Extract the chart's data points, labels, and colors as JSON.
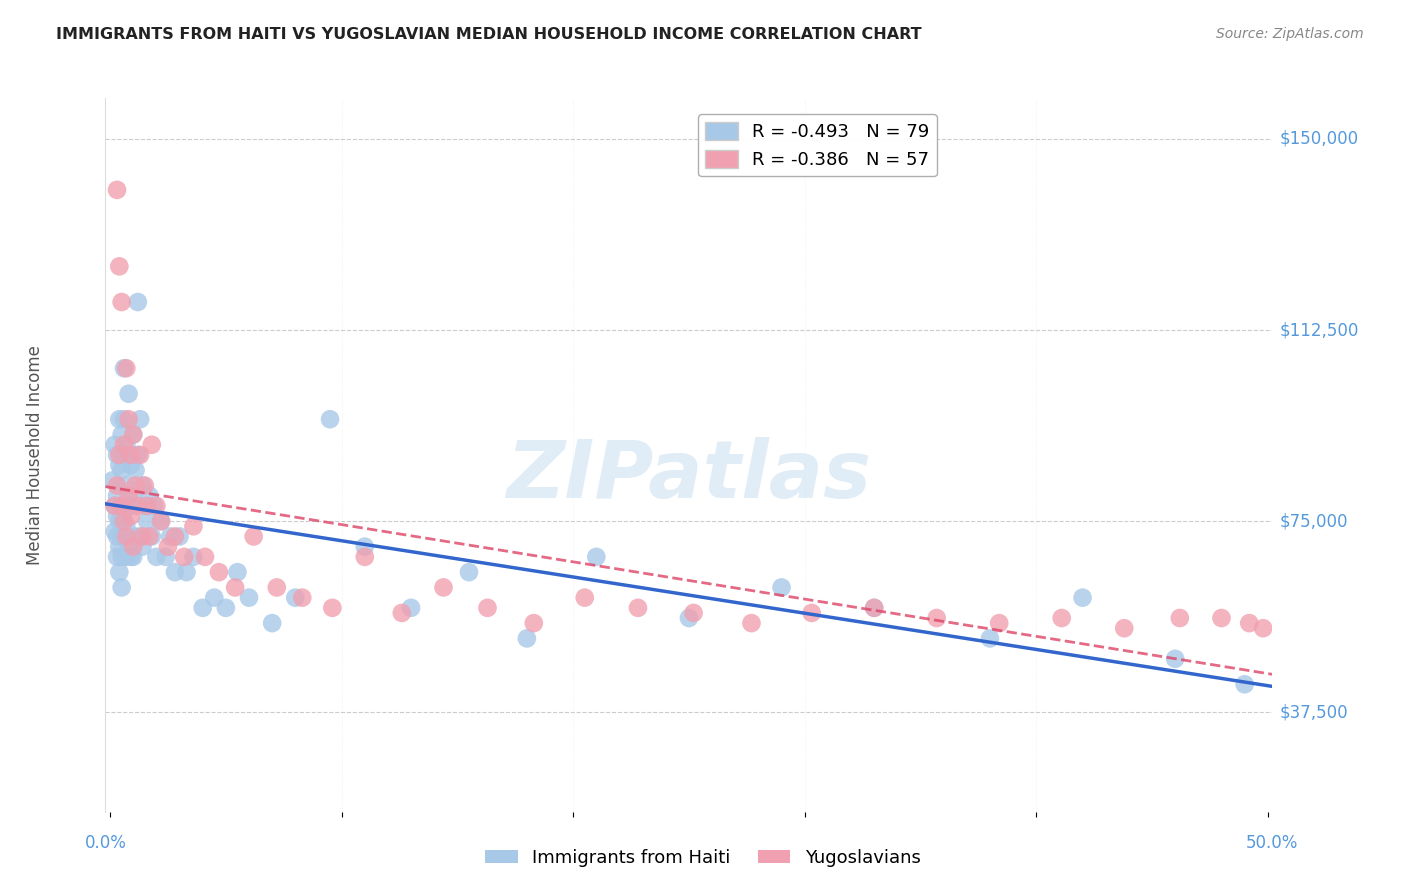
{
  "title": "IMMIGRANTS FROM HAITI VS YUGOSLAVIAN MEDIAN HOUSEHOLD INCOME CORRELATION CHART",
  "source": "Source: ZipAtlas.com",
  "ylabel": "Median Household Income",
  "ytick_labels": [
    "$150,000",
    "$112,500",
    "$75,000",
    "$37,500"
  ],
  "ytick_values": [
    150000,
    112500,
    75000,
    37500
  ],
  "ymin": 18000,
  "ymax": 158000,
  "xmin": -0.002,
  "xmax": 0.502,
  "watermark_text": "ZIPatlas",
  "haiti_color": "#a8c8e8",
  "yugo_color": "#f0a0b0",
  "haiti_line_color": "#3366cc",
  "yugo_line_color": "#dd4466",
  "background_color": "#ffffff",
  "grid_color": "#cccccc",
  "title_color": "#222222",
  "source_color": "#888888",
  "axis_label_color": "#5599dd",
  "right_tick_color": "#5599dd",
  "haiti_scatter_x": [
    0.001,
    0.002,
    0.002,
    0.002,
    0.003,
    0.003,
    0.003,
    0.003,
    0.003,
    0.004,
    0.004,
    0.004,
    0.004,
    0.004,
    0.005,
    0.005,
    0.005,
    0.005,
    0.005,
    0.005,
    0.006,
    0.006,
    0.006,
    0.006,
    0.007,
    0.007,
    0.007,
    0.007,
    0.008,
    0.008,
    0.008,
    0.008,
    0.009,
    0.009,
    0.009,
    0.01,
    0.01,
    0.01,
    0.011,
    0.011,
    0.012,
    0.012,
    0.013,
    0.013,
    0.014,
    0.014,
    0.015,
    0.016,
    0.017,
    0.018,
    0.019,
    0.02,
    0.022,
    0.024,
    0.026,
    0.028,
    0.03,
    0.033,
    0.036,
    0.04,
    0.045,
    0.05,
    0.055,
    0.06,
    0.07,
    0.08,
    0.095,
    0.11,
    0.13,
    0.155,
    0.18,
    0.21,
    0.25,
    0.29,
    0.33,
    0.38,
    0.42,
    0.46,
    0.49
  ],
  "haiti_scatter_y": [
    83000,
    90000,
    78000,
    73000,
    88000,
    80000,
    72000,
    68000,
    76000,
    95000,
    86000,
    75000,
    70000,
    65000,
    92000,
    85000,
    78000,
    72000,
    68000,
    62000,
    105000,
    95000,
    88000,
    75000,
    90000,
    82000,
    74000,
    68000,
    100000,
    88000,
    78000,
    70000,
    86000,
    78000,
    68000,
    92000,
    80000,
    68000,
    85000,
    72000,
    118000,
    88000,
    95000,
    72000,
    82000,
    70000,
    78000,
    75000,
    80000,
    72000,
    78000,
    68000,
    75000,
    68000,
    72000,
    65000,
    72000,
    65000,
    68000,
    58000,
    60000,
    58000,
    65000,
    60000,
    55000,
    60000,
    95000,
    70000,
    58000,
    65000,
    52000,
    68000,
    56000,
    62000,
    58000,
    52000,
    60000,
    48000,
    43000
  ],
  "yugo_scatter_x": [
    0.002,
    0.003,
    0.003,
    0.004,
    0.004,
    0.005,
    0.005,
    0.006,
    0.006,
    0.007,
    0.007,
    0.008,
    0.008,
    0.009,
    0.009,
    0.01,
    0.01,
    0.011,
    0.012,
    0.013,
    0.014,
    0.015,
    0.016,
    0.017,
    0.018,
    0.02,
    0.022,
    0.025,
    0.028,
    0.032,
    0.036,
    0.041,
    0.047,
    0.054,
    0.062,
    0.072,
    0.083,
    0.096,
    0.11,
    0.126,
    0.144,
    0.163,
    0.183,
    0.205,
    0.228,
    0.252,
    0.277,
    0.303,
    0.33,
    0.357,
    0.384,
    0.411,
    0.438,
    0.462,
    0.48,
    0.492,
    0.498
  ],
  "yugo_scatter_y": [
    78000,
    140000,
    82000,
    125000,
    88000,
    78000,
    118000,
    90000,
    75000,
    105000,
    72000,
    95000,
    80000,
    88000,
    76000,
    92000,
    70000,
    82000,
    78000,
    88000,
    72000,
    82000,
    78000,
    72000,
    90000,
    78000,
    75000,
    70000,
    72000,
    68000,
    74000,
    68000,
    65000,
    62000,
    72000,
    62000,
    60000,
    58000,
    68000,
    57000,
    62000,
    58000,
    55000,
    60000,
    58000,
    57000,
    55000,
    57000,
    58000,
    56000,
    55000,
    56000,
    54000,
    56000,
    56000,
    55000,
    54000
  ]
}
